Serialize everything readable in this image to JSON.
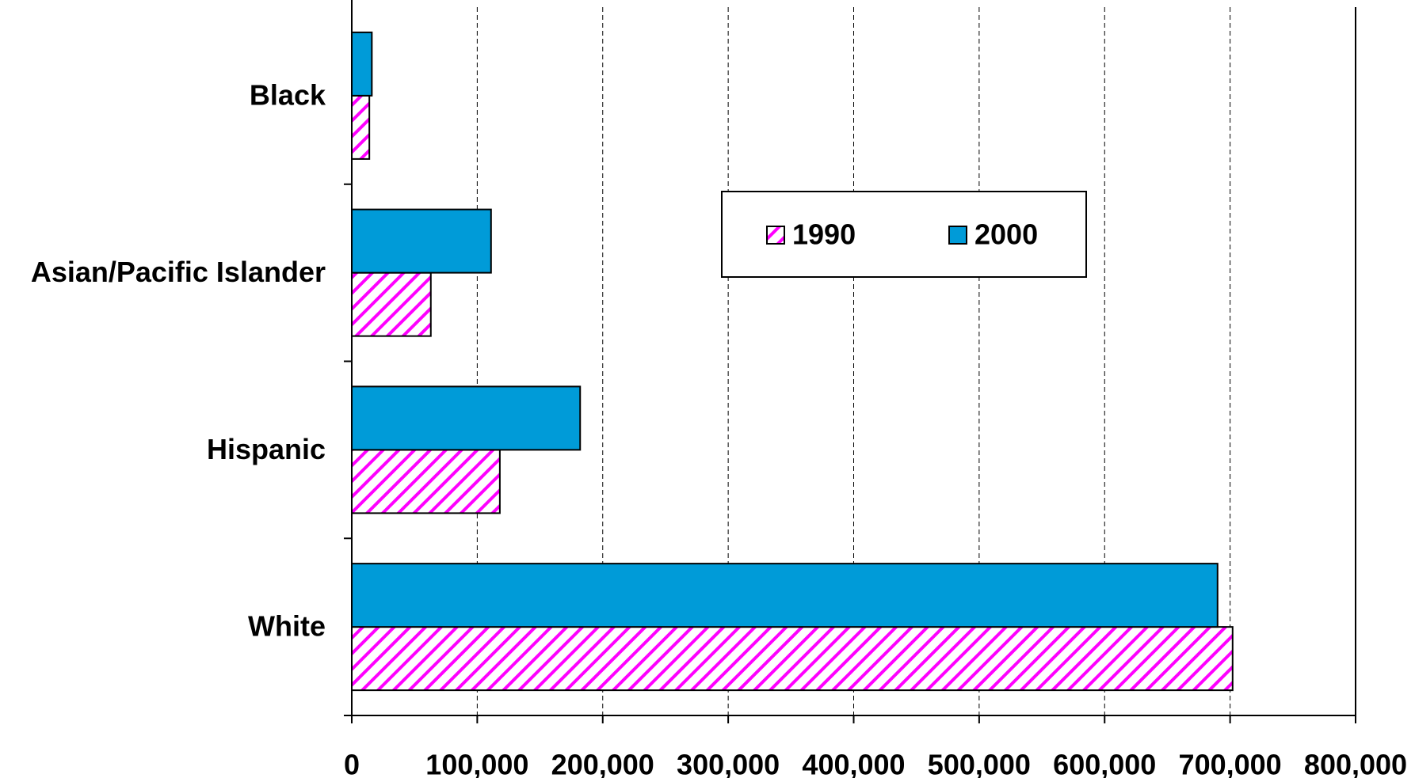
{
  "chart_data": {
    "type": "hbar",
    "categories": [
      "Black",
      "Asian/Pacific Islander",
      "Hispanic",
      "White"
    ],
    "series": [
      {
        "name": "1990",
        "color": "#ff00ff",
        "values": [
          14000,
          63000,
          118000,
          702000
        ]
      },
      {
        "name": "2000",
        "color": "#009bd8",
        "values": [
          16000,
          111000,
          182000,
          690000
        ]
      }
    ],
    "xlim": [
      0,
      800000
    ],
    "xticks": [
      0,
      {
        "value": 100000,
        "label": "100,000"
      },
      {
        "value": 200000,
        "label": "200,000"
      },
      {
        "value": 300000,
        "label": "300,000"
      },
      {
        "value": 400000,
        "label": "400,000"
      },
      {
        "value": 500000,
        "label": "500,000"
      },
      {
        "value": 600000,
        "label": "600,000"
      },
      {
        "value": 700000,
        "label": "700,000"
      },
      {
        "value": 800000,
        "label": "800,000"
      }
    ],
    "grid": true
  }
}
